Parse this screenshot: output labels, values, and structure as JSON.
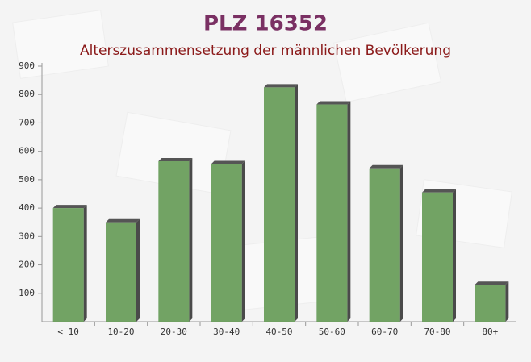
{
  "chart_data": {
    "type": "bar",
    "title": "PLZ 16352",
    "subtitle": "Alterszusammensetzung der männlichen Bevölkerung",
    "categories": [
      "< 10",
      "10-20",
      "20-30",
      "30-40",
      "40-50",
      "50-60",
      "60-70",
      "70-80",
      "80+"
    ],
    "values": [
      400,
      350,
      565,
      555,
      825,
      765,
      540,
      455,
      130
    ],
    "color": "#6a9e5c",
    "ylim": [
      0,
      900
    ],
    "yticks": [
      100,
      200,
      300,
      400,
      500,
      600,
      700,
      800,
      900
    ]
  }
}
